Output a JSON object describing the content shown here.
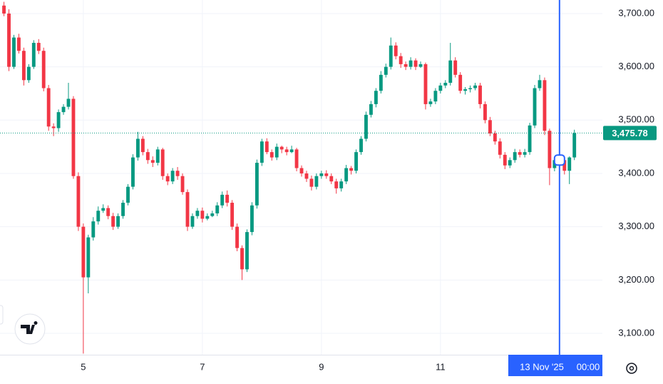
{
  "chart_data": {
    "type": "candlestick",
    "up_color": "#089981",
    "down_color": "#f23645",
    "x": [
      88,
      90,
      92,
      94,
      96,
      98,
      100,
      102,
      104,
      106,
      108,
      110,
      112,
      114,
      116,
      118,
      120,
      122,
      124,
      126,
      128,
      130,
      132,
      134,
      136,
      138,
      140,
      142,
      144,
      146,
      148,
      150,
      152,
      154,
      156,
      158,
      160,
      162,
      164,
      166,
      168,
      170,
      172,
      174,
      176,
      178,
      180,
      182,
      184,
      186,
      188,
      190,
      192,
      194,
      196,
      198,
      200,
      202,
      204,
      206,
      208,
      210,
      212,
      214,
      216,
      218,
      220,
      222,
      224,
      226,
      228,
      230,
      232,
      234,
      236,
      238,
      240,
      242,
      244,
      246,
      248,
      250,
      252,
      254,
      256,
      258,
      260,
      262,
      264,
      266,
      268,
      270,
      272,
      274,
      276,
      278,
      280,
      282,
      284,
      286,
      288,
      290,
      292,
      294,
      296,
      298,
      300,
      302,
      304,
      306,
      308,
      310,
      312,
      314,
      316,
      318
    ],
    "open": [
      3715,
      3700,
      3600,
      3655,
      3630,
      3575,
      3600,
      3645,
      3630,
      3560,
      3488,
      3485,
      3515,
      3525,
      3540,
      3395,
      3300,
      3205,
      3280,
      3310,
      3330,
      3335,
      3320,
      3300,
      3320,
      3345,
      3375,
      3430,
      3465,
      3440,
      3425,
      3420,
      3445,
      3395,
      3385,
      3405,
      3395,
      3365,
      3300,
      3320,
      3330,
      3315,
      3320,
      3325,
      3340,
      3360,
      3345,
      3300,
      3260,
      3220,
      3290,
      3340,
      3420,
      3460,
      3440,
      3430,
      3450,
      3445,
      3440,
      3445,
      3410,
      3400,
      3390,
      3375,
      3395,
      3400,
      3395,
      3385,
      3372,
      3385,
      3410,
      3405,
      3440,
      3465,
      3510,
      3530,
      3555,
      3585,
      3600,
      3640,
      3620,
      3605,
      3600,
      3612,
      3600,
      3605,
      3530,
      3535,
      3555,
      3565,
      3570,
      3612,
      3585,
      3555,
      3558,
      3560,
      3565,
      3530,
      3500,
      3475,
      3460,
      3435,
      3415,
      3425,
      3440,
      3435,
      3440,
      3490,
      3560,
      3575,
      3480,
      3410,
      3425,
      3425,
      3405,
      3430
    ],
    "high": [
      3722,
      3708,
      3660,
      3662,
      3636,
      3605,
      3650,
      3652,
      3636,
      3566,
      3494,
      3520,
      3530,
      3570,
      3545,
      3402,
      3306,
      3285,
      3318,
      3338,
      3342,
      3340,
      3326,
      3325,
      3350,
      3380,
      3436,
      3478,
      3470,
      3446,
      3432,
      3450,
      3448,
      3400,
      3410,
      3412,
      3400,
      3370,
      3325,
      3335,
      3336,
      3325,
      3330,
      3346,
      3366,
      3368,
      3350,
      3306,
      3265,
      3295,
      3346,
      3426,
      3465,
      3466,
      3445,
      3456,
      3452,
      3450,
      3452,
      3448,
      3415,
      3405,
      3396,
      3400,
      3405,
      3406,
      3400,
      3390,
      3390,
      3416,
      3414,
      3445,
      3470,
      3516,
      3536,
      3560,
      3592,
      3606,
      3655,
      3646,
      3626,
      3610,
      3618,
      3616,
      3610,
      3608,
      3540,
      3560,
      3570,
      3575,
      3645,
      3618,
      3590,
      3562,
      3565,
      3570,
      3570,
      3535,
      3506,
      3480,
      3466,
      3440,
      3430,
      3446,
      3445,
      3446,
      3495,
      3566,
      3585,
      3580,
      3484,
      3430,
      3432,
      3430,
      3432,
      3482
    ],
    "low": [
      3695,
      3592,
      3596,
      3625,
      3565,
      3570,
      3596,
      3624,
      3554,
      3480,
      3470,
      3478,
      3510,
      3520,
      3390,
      3292,
      3062,
      3175,
      3274,
      3304,
      3326,
      3314,
      3294,
      3296,
      3315,
      3340,
      3370,
      3424,
      3434,
      3418,
      3412,
      3415,
      3388,
      3378,
      3380,
      3388,
      3360,
      3292,
      3296,
      3315,
      3308,
      3312,
      3318,
      3320,
      3335,
      3338,
      3294,
      3254,
      3200,
      3215,
      3284,
      3334,
      3414,
      3436,
      3424,
      3425,
      3438,
      3434,
      3438,
      3404,
      3394,
      3384,
      3368,
      3370,
      3390,
      3390,
      3380,
      3362,
      3366,
      3380,
      3398,
      3400,
      3435,
      3460,
      3505,
      3524,
      3550,
      3580,
      3595,
      3614,
      3598,
      3594,
      3595,
      3594,
      3598,
      3520,
      3525,
      3530,
      3550,
      3560,
      3565,
      3580,
      3550,
      3548,
      3552,
      3556,
      3522,
      3494,
      3470,
      3454,
      3428,
      3408,
      3410,
      3420,
      3430,
      3430,
      3435,
      3485,
      3555,
      3472,
      3378,
      3404,
      3418,
      3398,
      3380,
      3425
    ],
    "close": [
      3700,
      3600,
      3655,
      3630,
      3575,
      3600,
      3645,
      3630,
      3560,
      3488,
      3485,
      3515,
      3525,
      3540,
      3395,
      3300,
      3205,
      3280,
      3310,
      3330,
      3335,
      3320,
      3300,
      3320,
      3345,
      3375,
      3430,
      3465,
      3440,
      3425,
      3420,
      3445,
      3395,
      3385,
      3405,
      3395,
      3365,
      3300,
      3320,
      3330,
      3315,
      3320,
      3325,
      3340,
      3360,
      3345,
      3300,
      3260,
      3220,
      3290,
      3340,
      3420,
      3460,
      3440,
      3430,
      3450,
      3445,
      3440,
      3445,
      3410,
      3400,
      3390,
      3375,
      3395,
      3400,
      3395,
      3385,
      3372,
      3385,
      3410,
      3405,
      3440,
      3465,
      3510,
      3530,
      3555,
      3585,
      3600,
      3640,
      3620,
      3605,
      3600,
      3612,
      3600,
      3605,
      3530,
      3535,
      3555,
      3565,
      3570,
      3612,
      3585,
      3555,
      3558,
      3560,
      3565,
      3530,
      3500,
      3475,
      3460,
      3435,
      3415,
      3425,
      3440,
      3435,
      3440,
      3490,
      3560,
      3575,
      3480,
      3410,
      3425,
      3425,
      3405,
      3430,
      3475.78
    ],
    "xlim": [
      86.4,
      329.3
    ],
    "xticks": [
      {
        "value": 120,
        "label": "5"
      },
      {
        "value": 168,
        "label": "7"
      },
      {
        "value": 216,
        "label": "9"
      },
      {
        "value": 264,
        "label": "11"
      }
    ],
    "ylim": [
      3059.8,
      3725.4
    ],
    "yticks": [
      {
        "value": 3100,
        "label": "3,100.00"
      },
      {
        "value": 3200,
        "label": "3,200.00"
      },
      {
        "value": 3300,
        "label": "3,300.00"
      },
      {
        "value": 3400,
        "label": "3,400.00"
      },
      {
        "value": 3500,
        "label": "3,500.00"
      },
      {
        "value": 3600,
        "label": "3,600.00"
      },
      {
        "value": 3700,
        "label": "3,700.00"
      }
    ],
    "grid": true,
    "last_price": {
      "value": 3475.78,
      "label": "3,475.78",
      "color": "#089981"
    },
    "crosshair": {
      "x": 312,
      "date_label": "13 Nov '25",
      "time_label": "00:00",
      "color": "#2962ff"
    }
  }
}
